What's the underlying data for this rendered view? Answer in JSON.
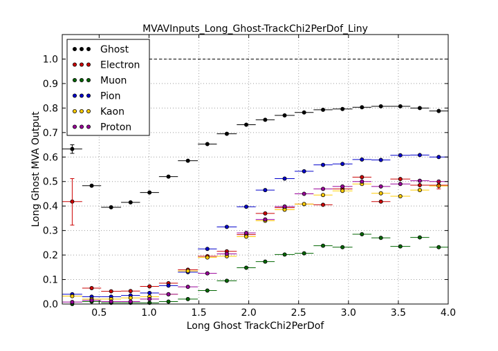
{
  "chart_data": {
    "type": "scatter",
    "title": "MVAVInputs_Long_Ghost-TrackChi2PerDof_Liny",
    "xlabel": "Long Ghost TrackChi2PerDof",
    "ylabel": "Long Ghost MVA Output",
    "xlim": [
      0.13,
      4.0
    ],
    "ylim": [
      0.0,
      1.1
    ],
    "x_ticks": [
      "0.5",
      "1.0",
      "1.5",
      "2.0",
      "2.5",
      "3.0",
      "3.5",
      "4.0"
    ],
    "y_ticks": [
      "0.0",
      "0.1",
      "0.2",
      "0.3",
      "0.4",
      "0.5",
      "0.6",
      "0.7",
      "0.8",
      "0.9",
      "1.0"
    ],
    "grid": true,
    "legend_position": "top-left",
    "reference_line": 1.0,
    "x_bins": [
      0.13,
      0.33,
      0.52,
      0.72,
      0.91,
      1.1,
      1.29,
      1.49,
      1.68,
      1.88,
      2.07,
      2.26,
      2.46,
      2.65,
      2.84,
      3.04,
      3.23,
      3.42,
      3.62,
      3.81,
      4.0
    ],
    "series": [
      {
        "name": "Ghost",
        "color": "#000000",
        "values": [
          0.633,
          0.483,
          0.395,
          0.415,
          0.455,
          0.52,
          0.585,
          0.653,
          0.695,
          0.732,
          0.752,
          0.77,
          0.782,
          0.793,
          0.796,
          0.803,
          0.807,
          0.807,
          0.8,
          0.788
        ]
      },
      {
        "name": "Electron",
        "color": "#cc0000",
        "values": [
          0.418,
          0.065,
          0.052,
          0.053,
          0.072,
          0.085,
          0.14,
          0.195,
          0.215,
          0.283,
          0.37,
          0.393,
          0.408,
          0.405,
          0.47,
          0.518,
          0.418,
          0.51,
          0.485,
          0.485
        ]
      },
      {
        "name": "Muon",
        "color": "#006600",
        "values": [
          0.0,
          0.01,
          0.005,
          0.005,
          0.005,
          0.01,
          0.02,
          0.055,
          0.095,
          0.148,
          0.173,
          0.202,
          0.207,
          0.238,
          0.232,
          0.285,
          0.27,
          0.235,
          0.272,
          0.232
        ]
      },
      {
        "name": "Pion",
        "color": "#0000cc",
        "values": [
          0.04,
          0.03,
          0.03,
          0.035,
          0.045,
          0.075,
          0.13,
          0.225,
          0.315,
          0.397,
          0.465,
          0.512,
          0.542,
          0.568,
          0.572,
          0.59,
          0.588,
          0.607,
          0.608,
          0.6
        ]
      },
      {
        "name": "Kaon",
        "color": "#ffcc00",
        "values": [
          0.032,
          0.02,
          0.02,
          0.025,
          0.03,
          0.04,
          0.135,
          0.19,
          0.195,
          0.275,
          0.34,
          0.385,
          0.408,
          0.445,
          0.462,
          0.49,
          0.452,
          0.44,
          0.465,
          0.482
        ]
      },
      {
        "name": "Proton",
        "color": "#990099",
        "values": [
          0.008,
          0.015,
          0.01,
          0.01,
          0.02,
          0.04,
          0.07,
          0.125,
          0.205,
          0.29,
          0.345,
          0.398,
          0.45,
          0.47,
          0.48,
          0.5,
          0.48,
          0.49,
          0.503,
          0.5
        ]
      }
    ]
  }
}
